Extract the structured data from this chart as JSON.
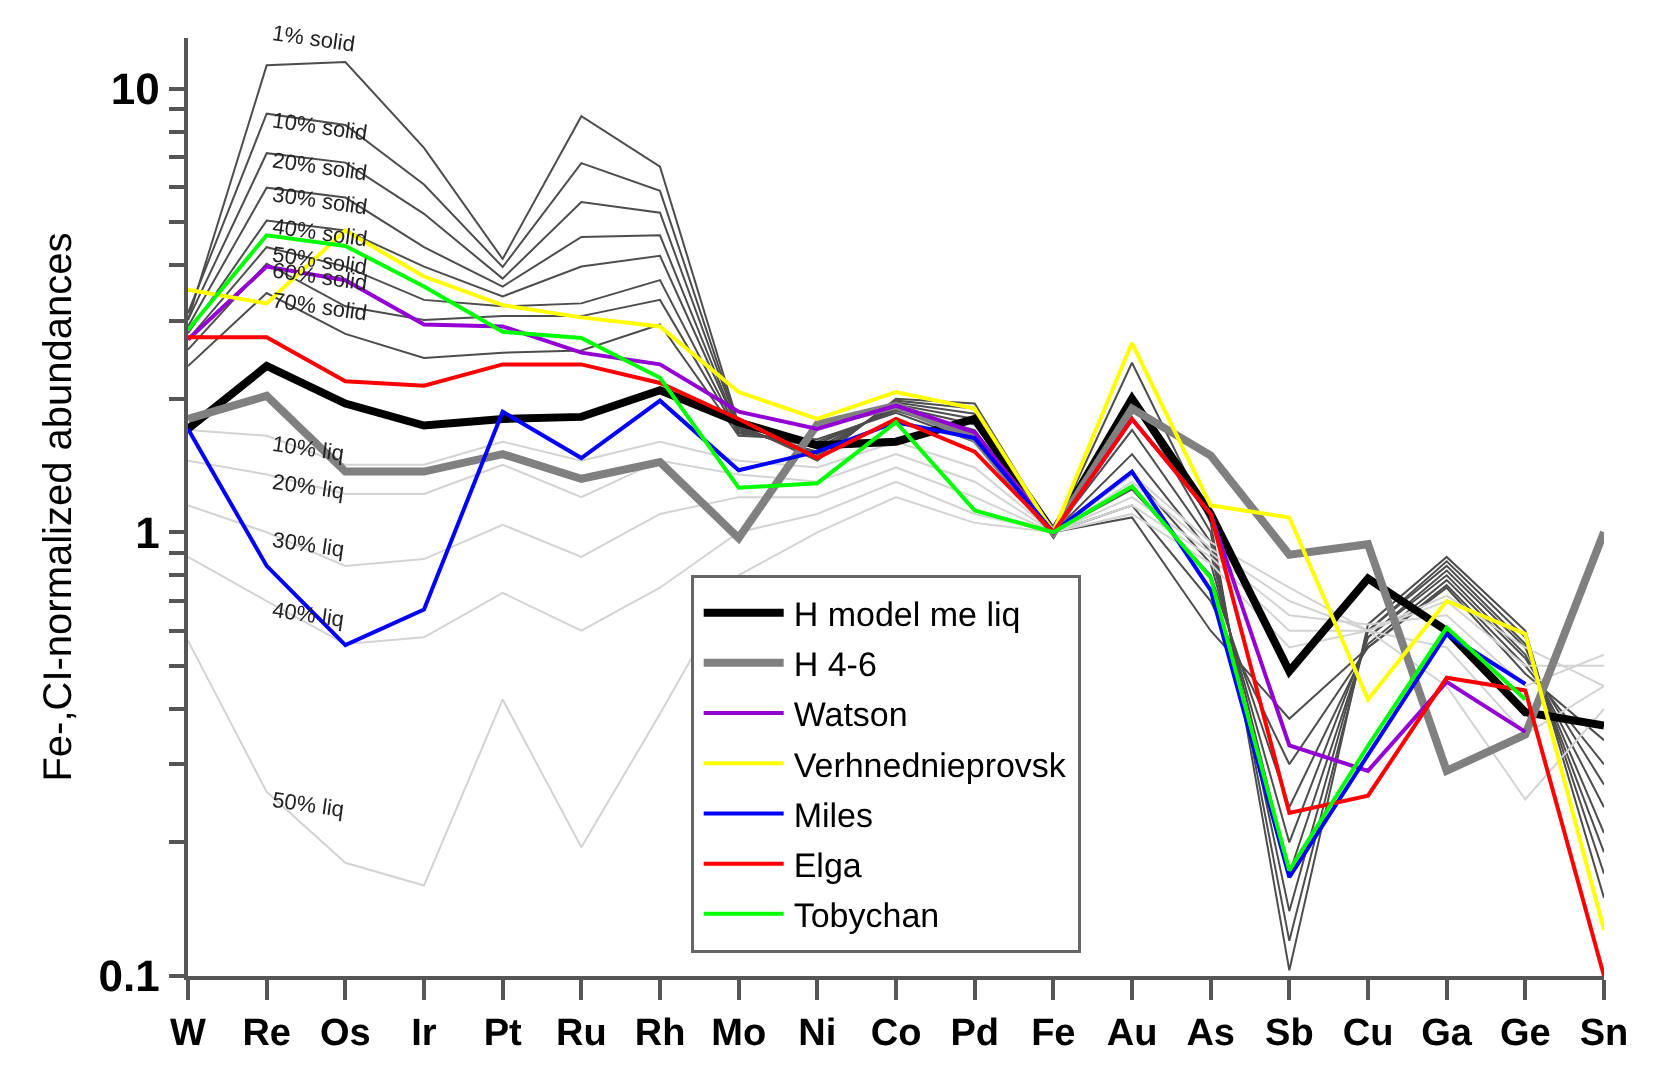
{
  "chart_data": {
    "type": "line",
    "ylabel": "Fe-,CI-normalized abundances",
    "categories": [
      "W",
      "Re",
      "Os",
      "Ir",
      "Pt",
      "Ru",
      "Rh",
      "Mo",
      "Ni",
      "Co",
      "Pd",
      "Fe",
      "Au",
      "As",
      "Sb",
      "Cu",
      "Ga",
      "Ge",
      "Sn"
    ],
    "log": true,
    "ylim": [
      0.1,
      13
    ],
    "yticks": [
      0.1,
      {
        "value": 0.2,
        "label": null
      },
      {
        "value": 0.3,
        "label": null
      },
      {
        "value": 0.4,
        "label": null
      },
      {
        "value": 0.5,
        "label": null
      },
      {
        "value": 0.6,
        "label": null
      },
      {
        "value": 0.7,
        "label": null
      },
      {
        "value": 0.8,
        "label": null
      },
      {
        "value": 0.9,
        "label": null
      },
      1,
      {
        "value": 2,
        "label": null
      },
      {
        "value": 3,
        "label": null
      },
      {
        "value": 4,
        "label": null
      },
      {
        "value": 5,
        "label": null
      },
      {
        "value": 6,
        "label": null
      },
      {
        "value": 7,
        "label": null
      },
      {
        "value": 8,
        "label": null
      },
      {
        "value": 9,
        "label": null
      },
      10
    ],
    "legend": "bottom",
    "marker": "none",
    "line_style": "solid",
    "series": [
      {
        "color": "#4d4d4d",
        "values": [
          3.01,
          11.28,
          11.47,
          7.35,
          4.13,
          8.66,
          6.67,
          1.75,
          1.45,
          2.0,
          1.95,
          1,
          2.41,
          1.05,
          0.103,
          0.62,
          0.88,
          0.6,
          0.15
        ]
      },
      {
        "color": "#4d4d4d",
        "values": [
          3.12,
          8.78,
          8.28,
          6.08,
          3.96,
          6.79,
          5.88,
          1.73,
          1.48,
          1.98,
          1.9,
          1,
          2.0,
          1.0,
          0.12,
          0.6,
          0.86,
          0.58,
          0.17
        ]
      },
      {
        "color": "#4d4d4d",
        "values": [
          3.01,
          7.15,
          6.81,
          5.22,
          3.73,
          5.55,
          5.25,
          1.72,
          1.5,
          1.96,
          1.85,
          1,
          1.7,
          0.95,
          0.14,
          0.6,
          0.84,
          0.56,
          0.19
        ]
      },
      {
        "color": "#4d4d4d",
        "values": [
          2.91,
          5.98,
          5.68,
          4.39,
          3.58,
          4.63,
          4.67,
          1.7,
          1.52,
          1.94,
          1.8,
          1,
          1.5,
          0.9,
          0.17,
          0.58,
          0.82,
          0.55,
          0.21
        ]
      },
      {
        "color": "#4d4d4d",
        "values": [
          2.81,
          5.04,
          4.79,
          3.97,
          3.4,
          3.97,
          4.2,
          1.7,
          1.55,
          1.92,
          1.75,
          1,
          1.35,
          0.85,
          0.2,
          0.58,
          0.8,
          0.53,
          0.24
        ]
      },
      {
        "color": "#4d4d4d",
        "values": [
          2.72,
          4.39,
          3.97,
          3.34,
          3.23,
          3.28,
          3.7,
          1.68,
          1.58,
          1.9,
          1.7,
          1,
          1.25,
          0.8,
          0.24,
          0.56,
          0.78,
          0.52,
          0.27
        ]
      },
      {
        "color": "#4d4d4d",
        "values": [
          2.58,
          4.03,
          3.23,
          3.01,
          3.07,
          3.07,
          3.34,
          1.67,
          1.6,
          1.88,
          1.65,
          1,
          1.15,
          0.7,
          0.3,
          0.55,
          0.76,
          0.5,
          0.3
        ]
      },
      {
        "color": "#4d4d4d",
        "values": [
          2.37,
          3.46,
          2.8,
          2.47,
          2.54,
          2.57,
          2.94,
          1.65,
          1.62,
          1.86,
          1.6,
          1,
          1.08,
          0.6,
          0.38,
          0.55,
          0.75,
          0.48,
          0.34
        ]
      },
      {
        "color": "#d3d3d3",
        "values": [
          1.7,
          1.65,
          1.42,
          1.42,
          1.6,
          1.45,
          1.6,
          1.45,
          1.4,
          1.6,
          1.4,
          1,
          1.35,
          0.95,
          0.75,
          0.6,
          0.72,
          0.55,
          0.45
        ]
      },
      {
        "color": "#d3d3d3",
        "values": [
          1.45,
          1.35,
          1.22,
          1.22,
          1.42,
          1.2,
          1.45,
          1.35,
          1.3,
          1.5,
          1.3,
          1,
          1.3,
          0.92,
          0.7,
          0.6,
          0.7,
          0.5,
          0.5
        ]
      },
      {
        "color": "#d3d3d3",
        "values": [
          1.15,
          1.0,
          0.84,
          0.87,
          1.04,
          0.88,
          1.1,
          1.2,
          1.2,
          1.4,
          1.2,
          1,
          1.2,
          0.9,
          0.65,
          0.62,
          0.65,
          0.45,
          0.53
        ]
      },
      {
        "color": "#d3d3d3",
        "values": [
          0.88,
          0.7,
          0.56,
          0.58,
          0.73,
          0.6,
          0.75,
          1.0,
          1.1,
          1.3,
          1.1,
          1,
          1.15,
          0.88,
          0.6,
          0.6,
          0.55,
          0.35,
          0.45
        ]
      },
      {
        "color": "#d3d3d3",
        "values": [
          0.57,
          0.26,
          0.18,
          0.16,
          0.42,
          0.195,
          0.39,
          0.8,
          1.0,
          1.2,
          1.05,
          1,
          1.1,
          0.85,
          0.55,
          0.6,
          0.45,
          0.25,
          0.4
        ]
      },
      {
        "name": "H model me liq",
        "color": "#000000",
        "values": [
          1.71,
          2.37,
          1.95,
          1.74,
          1.8,
          1.82,
          2.09,
          1.77,
          1.57,
          1.6,
          1.8,
          1,
          2.0,
          1.1,
          0.486,
          0.787,
          0.6,
          0.393,
          0.367
        ]
      },
      {
        "name": "H 4-6",
        "color": "#808080",
        "values": [
          1.8,
          2.03,
          1.37,
          1.37,
          1.5,
          1.32,
          1.44,
          0.97,
          1.75,
          1.93,
          1.63,
          1,
          1.9,
          1.49,
          0.89,
          0.94,
          0.29,
          0.35,
          1.0
        ]
      },
      {
        "name": "Watson",
        "color": "#9400d3",
        "values": [
          2.72,
          3.97,
          3.7,
          2.94,
          2.91,
          2.54,
          2.39,
          1.87,
          1.71,
          1.93,
          1.68,
          1,
          1.8,
          1.1,
          0.331,
          0.29,
          0.46,
          0.355,
          null
        ]
      },
      {
        "name": "Verhnednieprovsk",
        "color": "#ffff00",
        "values": [
          3.52,
          3.28,
          4.79,
          3.77,
          3.25,
          3.05,
          2.91,
          2.07,
          1.8,
          2.07,
          1.9,
          1,
          2.67,
          1.15,
          1.08,
          0.42,
          0.7,
          0.59,
          0.127
        ]
      },
      {
        "name": "Miles",
        "color": "#0000ff",
        "values": [
          1.71,
          0.84,
          0.557,
          0.67,
          1.87,
          1.47,
          1.98,
          1.38,
          1.52,
          1.77,
          1.63,
          1,
          1.37,
          0.74,
          0.167,
          0.315,
          0.59,
          0.455,
          null
        ]
      },
      {
        "name": "Elga",
        "color": "#ff0000",
        "values": [
          2.75,
          2.75,
          2.19,
          2.14,
          2.39,
          2.39,
          2.17,
          1.8,
          1.47,
          1.8,
          1.52,
          1,
          1.8,
          1.1,
          0.233,
          0.255,
          0.47,
          0.44,
          0.1
        ]
      },
      {
        "name": "Tobychan",
        "color": "#00ff00",
        "values": [
          2.86,
          4.67,
          4.42,
          3.58,
          2.83,
          2.74,
          2.23,
          1.26,
          1.29,
          1.77,
          1.12,
          1,
          1.27,
          0.79,
          0.173,
          0.33,
          0.61,
          0.42,
          null
        ]
      }
    ],
    "annotations": [
      "1% solid",
      "10% solid",
      "20% solid",
      "30% solid",
      "40% solid",
      "50% solid",
      "60% solid",
      "70% solid",
      "10% liq",
      "20% liq",
      "30% liq",
      "40% liq",
      "50% liq"
    ]
  }
}
